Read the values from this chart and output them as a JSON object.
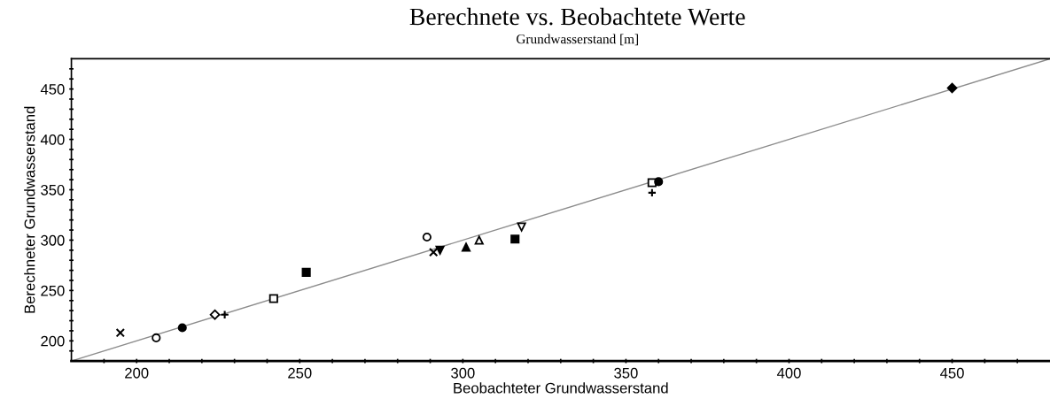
{
  "chart_data": {
    "type": "scatter",
    "title": "Berechnete vs. Beobachtete Werte",
    "subtitle": "Grundwasserstand [m]",
    "xlabel": "Beobachteter Grundwasserstand",
    "ylabel": "Berechneter Grundwasserstand",
    "xlim": [
      180,
      480
    ],
    "ylim": [
      180,
      480
    ],
    "xticks": [
      {
        "value": 190,
        "label": null
      },
      200,
      {
        "value": 210,
        "label": null
      },
      {
        "value": 220,
        "label": null
      },
      {
        "value": 230,
        "label": null
      },
      {
        "value": 240,
        "label": null
      },
      250,
      {
        "value": 260,
        "label": null
      },
      {
        "value": 270,
        "label": null
      },
      {
        "value": 280,
        "label": null
      },
      {
        "value": 290,
        "label": null
      },
      300,
      {
        "value": 310,
        "label": null
      },
      {
        "value": 320,
        "label": null
      },
      {
        "value": 330,
        "label": null
      },
      {
        "value": 340,
        "label": null
      },
      350,
      {
        "value": 360,
        "label": null
      },
      {
        "value": 370,
        "label": null
      },
      {
        "value": 380,
        "label": null
      },
      {
        "value": 390,
        "label": null
      },
      400,
      {
        "value": 410,
        "label": null
      },
      {
        "value": 420,
        "label": null
      },
      {
        "value": 430,
        "label": null
      },
      {
        "value": 440,
        "label": null
      },
      450,
      {
        "value": 460,
        "label": null
      },
      {
        "value": 470,
        "label": null
      }
    ],
    "yticks": [
      {
        "value": 190,
        "label": null
      },
      200,
      {
        "value": 210,
        "label": null
      },
      {
        "value": 220,
        "label": null
      },
      {
        "value": 230,
        "label": null
      },
      {
        "value": 240,
        "label": null
      },
      250,
      {
        "value": 260,
        "label": null
      },
      {
        "value": 270,
        "label": null
      },
      {
        "value": 280,
        "label": null
      },
      {
        "value": 290,
        "label": null
      },
      300,
      {
        "value": 310,
        "label": null
      },
      {
        "value": 320,
        "label": null
      },
      {
        "value": 330,
        "label": null
      },
      {
        "value": 340,
        "label": null
      },
      350,
      {
        "value": 360,
        "label": null
      },
      {
        "value": 370,
        "label": null
      },
      {
        "value": 380,
        "label": null
      },
      {
        "value": 390,
        "label": null
      },
      400,
      {
        "value": 410,
        "label": null
      },
      {
        "value": 420,
        "label": null
      },
      {
        "value": 430,
        "label": null
      },
      {
        "value": 440,
        "label": null
      },
      450,
      {
        "value": 460,
        "label": null
      },
      {
        "value": 470,
        "label": null
      }
    ],
    "grid": false,
    "legend": false,
    "series": [
      {
        "type": "line",
        "color": "#8c8c8c",
        "marker": "none",
        "line_style": "solid",
        "x": [
          180,
          480
        ],
        "values": [
          180,
          480
        ]
      },
      {
        "color": "#000000",
        "marker": "cross",
        "x": [
          195
        ],
        "values": [
          208
        ]
      },
      {
        "color": "#000000",
        "marker": "circle-open",
        "x": [
          206
        ],
        "values": [
          203
        ]
      },
      {
        "color": "#000000",
        "marker": "circle",
        "x": [
          214
        ],
        "values": [
          213
        ]
      },
      {
        "color": "#000000",
        "marker": "diamond-open",
        "x": [
          224
        ],
        "values": [
          226
        ]
      },
      {
        "color": "#000000",
        "marker": "plus",
        "x": [
          227
        ],
        "values": [
          226
        ]
      },
      {
        "color": "#000000",
        "marker": "square-open",
        "x": [
          242
        ],
        "values": [
          242
        ]
      },
      {
        "color": "#000000",
        "marker": "square",
        "x": [
          252
        ],
        "values": [
          268
        ]
      },
      {
        "color": "#000000",
        "marker": "circle-open",
        "x": [
          289
        ],
        "values": [
          303
        ]
      },
      {
        "color": "#000000",
        "marker": "cross",
        "x": [
          291
        ],
        "values": [
          288
        ]
      },
      {
        "color": "#000000",
        "marker": "triangle-down",
        "x": [
          293
        ],
        "values": [
          290
        ]
      },
      {
        "color": "#000000",
        "marker": "triangle",
        "x": [
          301
        ],
        "values": [
          293
        ]
      },
      {
        "color": "#000000",
        "marker": "triangle-open",
        "x": [
          305
        ],
        "values": [
          300
        ]
      },
      {
        "color": "#000000",
        "marker": "square",
        "x": [
          316
        ],
        "values": [
          301
        ]
      },
      {
        "color": "#000000",
        "marker": "triangle-down-open",
        "x": [
          318
        ],
        "values": [
          313
        ]
      },
      {
        "color": "#000000",
        "marker": "square-open",
        "x": [
          358
        ],
        "values": [
          357
        ]
      },
      {
        "color": "#000000",
        "marker": "circle",
        "x": [
          360
        ],
        "values": [
          358
        ]
      },
      {
        "color": "#000000",
        "marker": "plus",
        "x": [
          358
        ],
        "values": [
          347
        ]
      },
      {
        "color": "#000000",
        "marker": "diamond",
        "x": [
          450
        ],
        "values": [
          451
        ]
      }
    ]
  }
}
